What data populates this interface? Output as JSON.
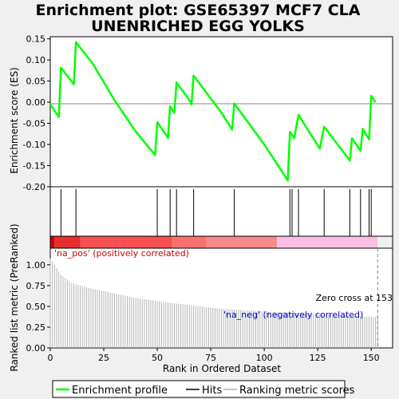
{
  "chart_data": {
    "type": "line",
    "title_lines": [
      "Enrichment plot: GSE65397 MCF7 CLA",
      "UNENRICHED EGG YOLKS"
    ],
    "top_panel": {
      "ylabel": "Enrichment score (ES)",
      "ylim": [
        -0.2,
        0.155
      ],
      "yticks": [
        "0.15",
        "0.10",
        "0.05",
        "0.00",
        "-0.05",
        "-0.10",
        "-0.15",
        "-0.20"
      ],
      "es_curve": [
        [
          0,
          -0.005
        ],
        [
          4,
          -0.035
        ],
        [
          5,
          0.082
        ],
        [
          11,
          0.042
        ],
        [
          12,
          0.142
        ],
        [
          20,
          0.09
        ],
        [
          30,
          0.005
        ],
        [
          40,
          -0.07
        ],
        [
          49,
          -0.125
        ],
        [
          50,
          -0.047
        ],
        [
          55,
          -0.084
        ],
        [
          56,
          -0.01
        ],
        [
          58,
          -0.025
        ],
        [
          59,
          0.047
        ],
        [
          65,
          0.005
        ],
        [
          66,
          -0.005
        ],
        [
          67,
          0.063
        ],
        [
          80,
          -0.025
        ],
        [
          85,
          -0.065
        ],
        [
          86,
          -0.003
        ],
        [
          100,
          -0.1
        ],
        [
          111,
          -0.185
        ],
        [
          112,
          -0.07
        ],
        [
          114,
          -0.085
        ],
        [
          116,
          -0.03
        ],
        [
          126,
          -0.11
        ],
        [
          128,
          -0.058
        ],
        [
          140,
          -0.138
        ],
        [
          141,
          -0.085
        ],
        [
          145,
          -0.115
        ],
        [
          146,
          -0.063
        ],
        [
          149,
          -0.088
        ],
        [
          150,
          0.015
        ],
        [
          152,
          0.0
        ]
      ],
      "hits": [
        5,
        12,
        50,
        56,
        59,
        67,
        86,
        112,
        113,
        116,
        128,
        140,
        145,
        149,
        150
      ]
    },
    "color_bar": {
      "segments": [
        {
          "from": 0,
          "to": 2,
          "color": "#d00000"
        },
        {
          "from": 2,
          "to": 14,
          "color": "#e62e2e"
        },
        {
          "from": 14,
          "to": 57,
          "color": "#f85050"
        },
        {
          "from": 57,
          "to": 73,
          "color": "#fa7070"
        },
        {
          "from": 73,
          "to": 106,
          "color": "#f98a8a"
        },
        {
          "from": 106,
          "to": 153,
          "color": "#f9c0e4"
        }
      ]
    },
    "bottom_panel": {
      "ylabel": "Ranked list metric (PreRanked)",
      "xlabel": "Rank in Ordered Dataset",
      "xlim": [
        0,
        160
      ],
      "ylim": [
        0,
        1.2
      ],
      "xticks": [
        "0",
        "25",
        "50",
        "75",
        "100",
        "125",
        "150"
      ],
      "yticks": [
        "0.00",
        "0.25",
        "0.50",
        "0.75",
        "1.00"
      ],
      "metric_points": [
        [
          0,
          1.08
        ],
        [
          5,
          0.88
        ],
        [
          10,
          0.78
        ],
        [
          20,
          0.71
        ],
        [
          40,
          0.6
        ],
        [
          60,
          0.53
        ],
        [
          80,
          0.47
        ],
        [
          100,
          0.44
        ],
        [
          130,
          0.4
        ],
        [
          153,
          0.37
        ]
      ],
      "zero_cross": 153,
      "annotations": {
        "pos": "'na_pos' (positively correlated)",
        "neg": "'na_neg' (negatively correlated)",
        "zero": "Zero cross at 153"
      }
    },
    "legend": [
      "Enrichment profile",
      "Hits",
      "Ranking metric scores"
    ],
    "colors": {
      "es": "#00ff00",
      "hit": "#000000",
      "metric": "#b4b4b4",
      "zero_line": "#808080",
      "pos_text": "#cc0000",
      "neg_text": "#0000cc"
    }
  }
}
